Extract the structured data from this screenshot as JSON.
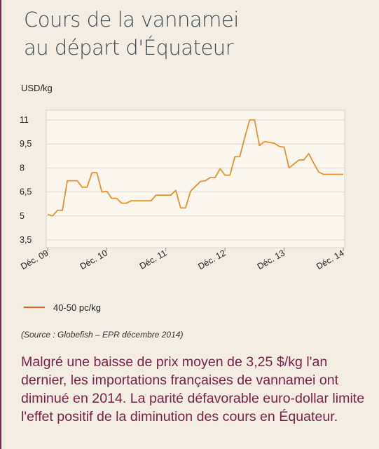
{
  "title_line1": "Cours de la vannamei",
  "title_line2": "au départ d'Équateur",
  "source": "(Source : Globefish – EPR décembre 2014)",
  "summary": "Malgré une baisse de prix moyen de 3,25 $/kg l'an dernier, les importations françaises de vannamei ont diminué en 2014. La parité défavorable euro-dollar limite l'effet positif de la diminution des cours en Équateur.",
  "colors": {
    "line": "#e8902a",
    "legend": "#e35b1e",
    "accent": "#7a1f47",
    "plot_bg": "#fbf7ee",
    "grid": "#dedad3"
  },
  "chart_data": {
    "type": "line",
    "title": "Cours de la vannamei au départ d'Équateur",
    "ylabel": "USD/kg",
    "xlabel": "",
    "ylim": [
      3.5,
      11.5
    ],
    "y_ticks": [
      3.5,
      5,
      6.5,
      8,
      9.5,
      11
    ],
    "y_tick_labels": [
      "3,5",
      "5",
      "6,5",
      "8",
      "9,5",
      "11"
    ],
    "x_ticks": [
      0,
      12,
      24,
      36,
      48,
      60
    ],
    "x_tick_labels": [
      "Déc. 09",
      "Déc. 10",
      "Déc. 11",
      "Déc. 12",
      "Déc. 13",
      "Déc. 14"
    ],
    "xlim": [
      0,
      60
    ],
    "grid": true,
    "legend_position": "bottom-left",
    "series": [
      {
        "name": "40-50 pc/kg",
        "x": [
          0,
          1,
          2,
          3,
          4,
          5,
          6,
          7,
          8,
          9,
          10,
          11,
          12,
          13,
          14,
          15,
          16,
          17,
          18,
          19,
          20,
          21,
          22,
          23,
          24,
          25,
          26,
          27,
          28,
          29,
          30,
          31,
          32,
          33,
          34,
          35,
          36,
          37,
          38,
          39,
          40,
          41,
          42,
          43,
          44,
          45,
          46,
          47,
          48,
          49,
          50,
          51,
          52,
          53,
          54,
          55,
          56,
          57,
          58,
          59,
          60
        ],
        "y": [
          5.1,
          5.0,
          5.35,
          5.35,
          7.2,
          7.2,
          7.2,
          6.8,
          6.8,
          7.7,
          7.7,
          6.5,
          6.55,
          6.1,
          6.1,
          5.8,
          5.8,
          5.95,
          5.95,
          5.95,
          5.95,
          5.95,
          6.3,
          6.3,
          6.3,
          6.3,
          6.6,
          5.5,
          5.5,
          6.55,
          6.85,
          7.15,
          7.2,
          7.4,
          7.4,
          7.95,
          7.55,
          7.55,
          8.7,
          8.7,
          9.9,
          11.0,
          11.0,
          9.4,
          9.65,
          9.6,
          9.55,
          9.35,
          9.3,
          8.0,
          8.25,
          8.5,
          8.5,
          8.9,
          8.3,
          7.75,
          7.6,
          7.6,
          7.6,
          7.6,
          7.6
        ]
      }
    ]
  }
}
